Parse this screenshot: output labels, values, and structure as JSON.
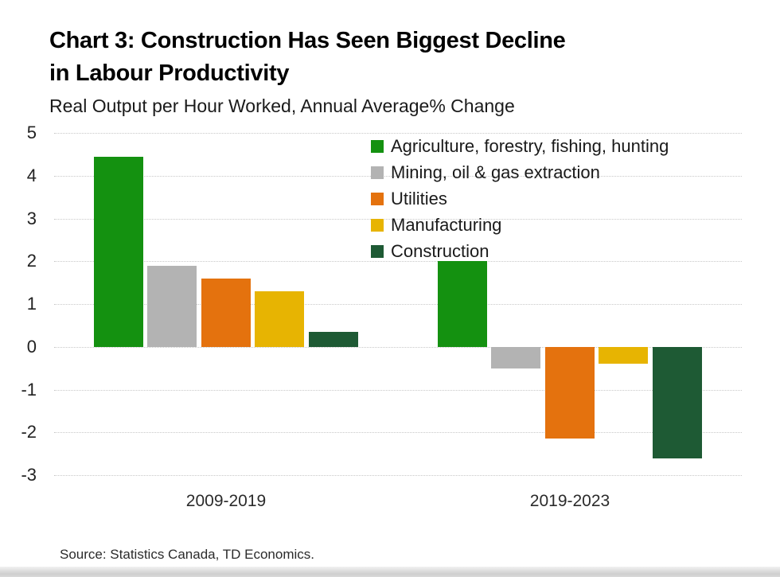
{
  "title": {
    "line1": "Chart 3: Construction Has Seen Biggest Decline",
    "line2": "in Labour Productivity"
  },
  "subtitle": "Real Output per Hour Worked, Annual Average% Change",
  "source": "Source: Statistics Canada, TD Economics.",
  "chart_data": {
    "type": "bar",
    "title": "Chart 3: Construction Has Seen Biggest Decline in Labour Productivity",
    "subtitle": "Real Output per Hour Worked, Annual Average% Change",
    "categories": [
      "2009-2019",
      "2019-2023"
    ],
    "series": [
      {
        "name": "Agriculture, forestry, fishing, hunting",
        "color": "#149110",
        "values": [
          4.45,
          2.0
        ]
      },
      {
        "name": "Mining, oil & gas extraction",
        "color": "#b3b3b3",
        "values": [
          1.9,
          -0.5
        ]
      },
      {
        "name": "Utilities",
        "color": "#e4720e",
        "values": [
          1.6,
          -2.15
        ]
      },
      {
        "name": "Manufacturing",
        "color": "#e7b402",
        "values": [
          1.3,
          -0.4
        ]
      },
      {
        "name": "Construction",
        "color": "#1e5a34",
        "values": [
          0.35,
          -2.6
        ]
      }
    ],
    "ylim": [
      -3,
      5
    ],
    "yticks": [
      5,
      4,
      3,
      2,
      1,
      0,
      -1,
      -2,
      -3
    ],
    "grid": true,
    "legend_position": "top-right",
    "xlabel": "",
    "ylabel": ""
  }
}
